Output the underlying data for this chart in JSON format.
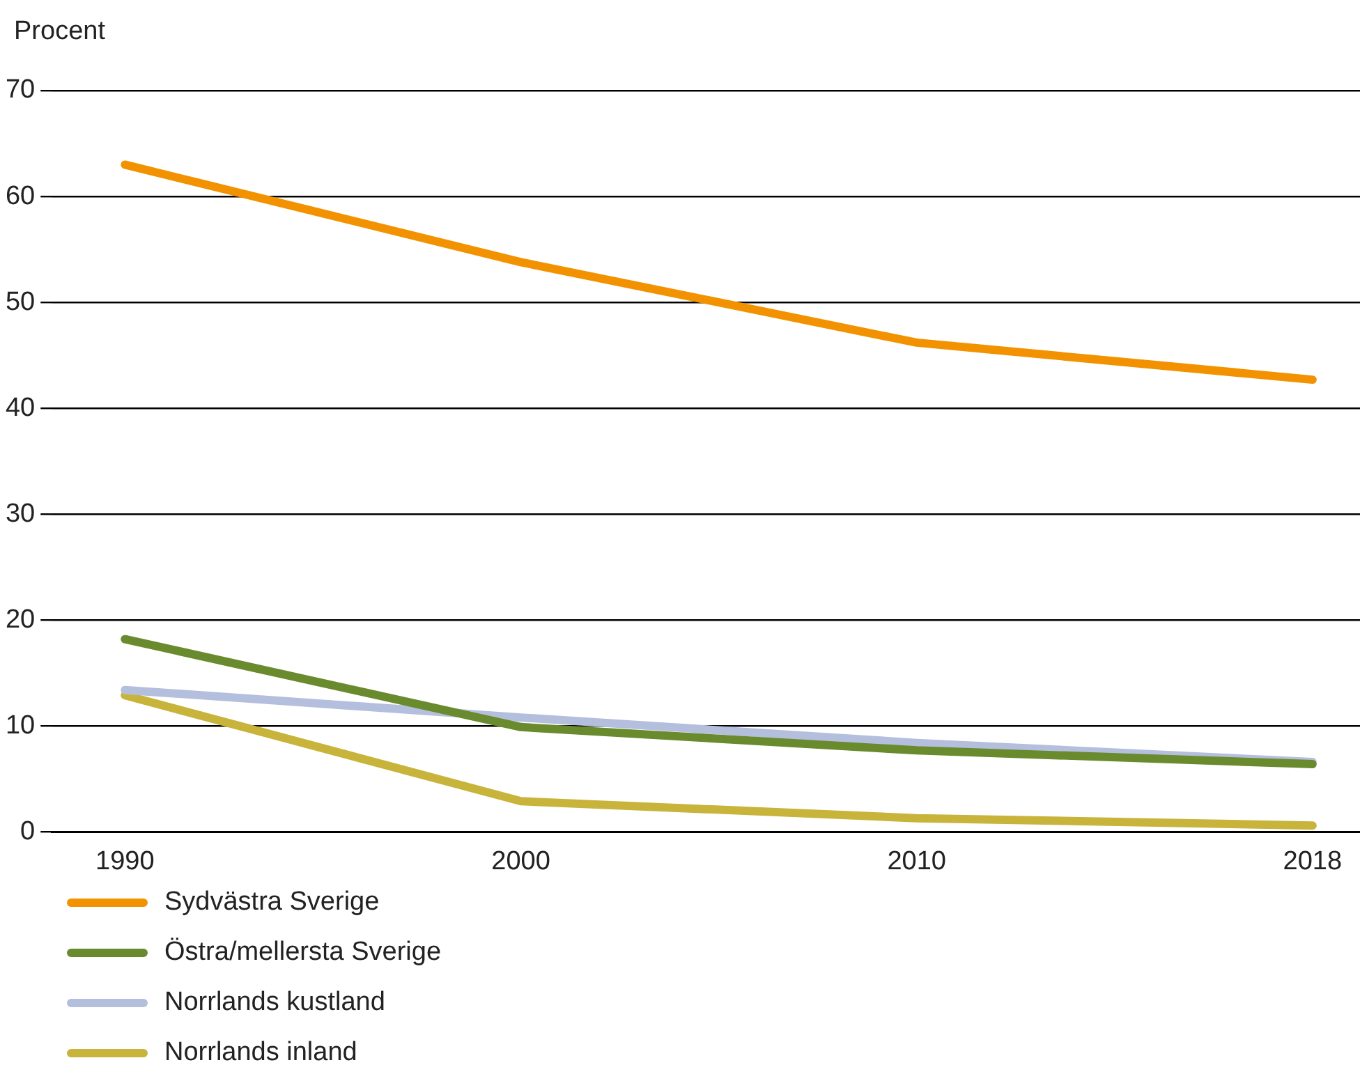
{
  "chart_data": {
    "type": "line",
    "ylabel": "Procent",
    "categories": [
      "1990",
      "2000",
      "2010",
      "2018"
    ],
    "ylim": [
      0,
      70
    ],
    "yticks": [
      0,
      10,
      20,
      30,
      40,
      50,
      60,
      70
    ],
    "grid": "y",
    "legend": "bottom left",
    "marker": "none",
    "line_style": "solid",
    "series": [
      {
        "name": "Sydvästra Sverige",
        "color": "#f39200",
        "values": [
          63.0,
          53.8,
          46.2,
          42.7
        ]
      },
      {
        "name": "Östra/mellersta Sverige",
        "color": "#6a8a2e",
        "values": [
          18.2,
          9.9,
          7.7,
          6.4
        ]
      },
      {
        "name": "Norrlands kustland",
        "color": "#b4bedd",
        "values": [
          13.4,
          10.8,
          8.4,
          6.6
        ]
      },
      {
        "name": "Norrlands inland",
        "color": "#c8b43a",
        "values": [
          12.9,
          2.9,
          1.3,
          0.6
        ]
      }
    ]
  }
}
